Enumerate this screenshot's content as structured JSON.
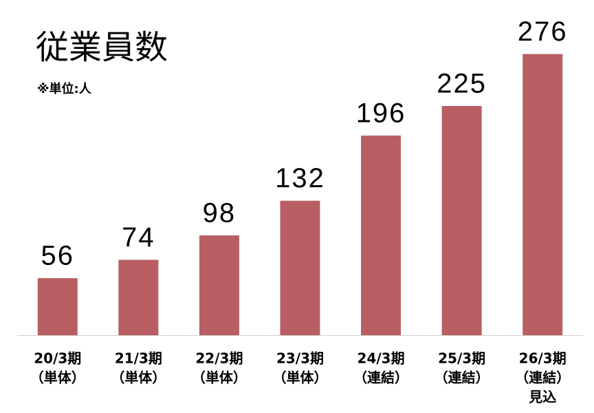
{
  "chart_data": {
    "type": "bar",
    "title": "従業員数",
    "subtitle": "※単位:人",
    "categories": [
      [
        "20/3期",
        "（単体）"
      ],
      [
        "21/3期",
        "（単体）"
      ],
      [
        "22/3期",
        "（単体）"
      ],
      [
        "23/3期",
        "（単体）"
      ],
      [
        "24/3期",
        "（連結）"
      ],
      [
        "25/3期",
        "（連結）"
      ],
      [
        "26/3期",
        "（連結）",
        "見込"
      ]
    ],
    "values": [
      56,
      74,
      98,
      132,
      196,
      225,
      276
    ],
    "color": "#b95f63",
    "ylim": [
      0,
      300
    ]
  }
}
